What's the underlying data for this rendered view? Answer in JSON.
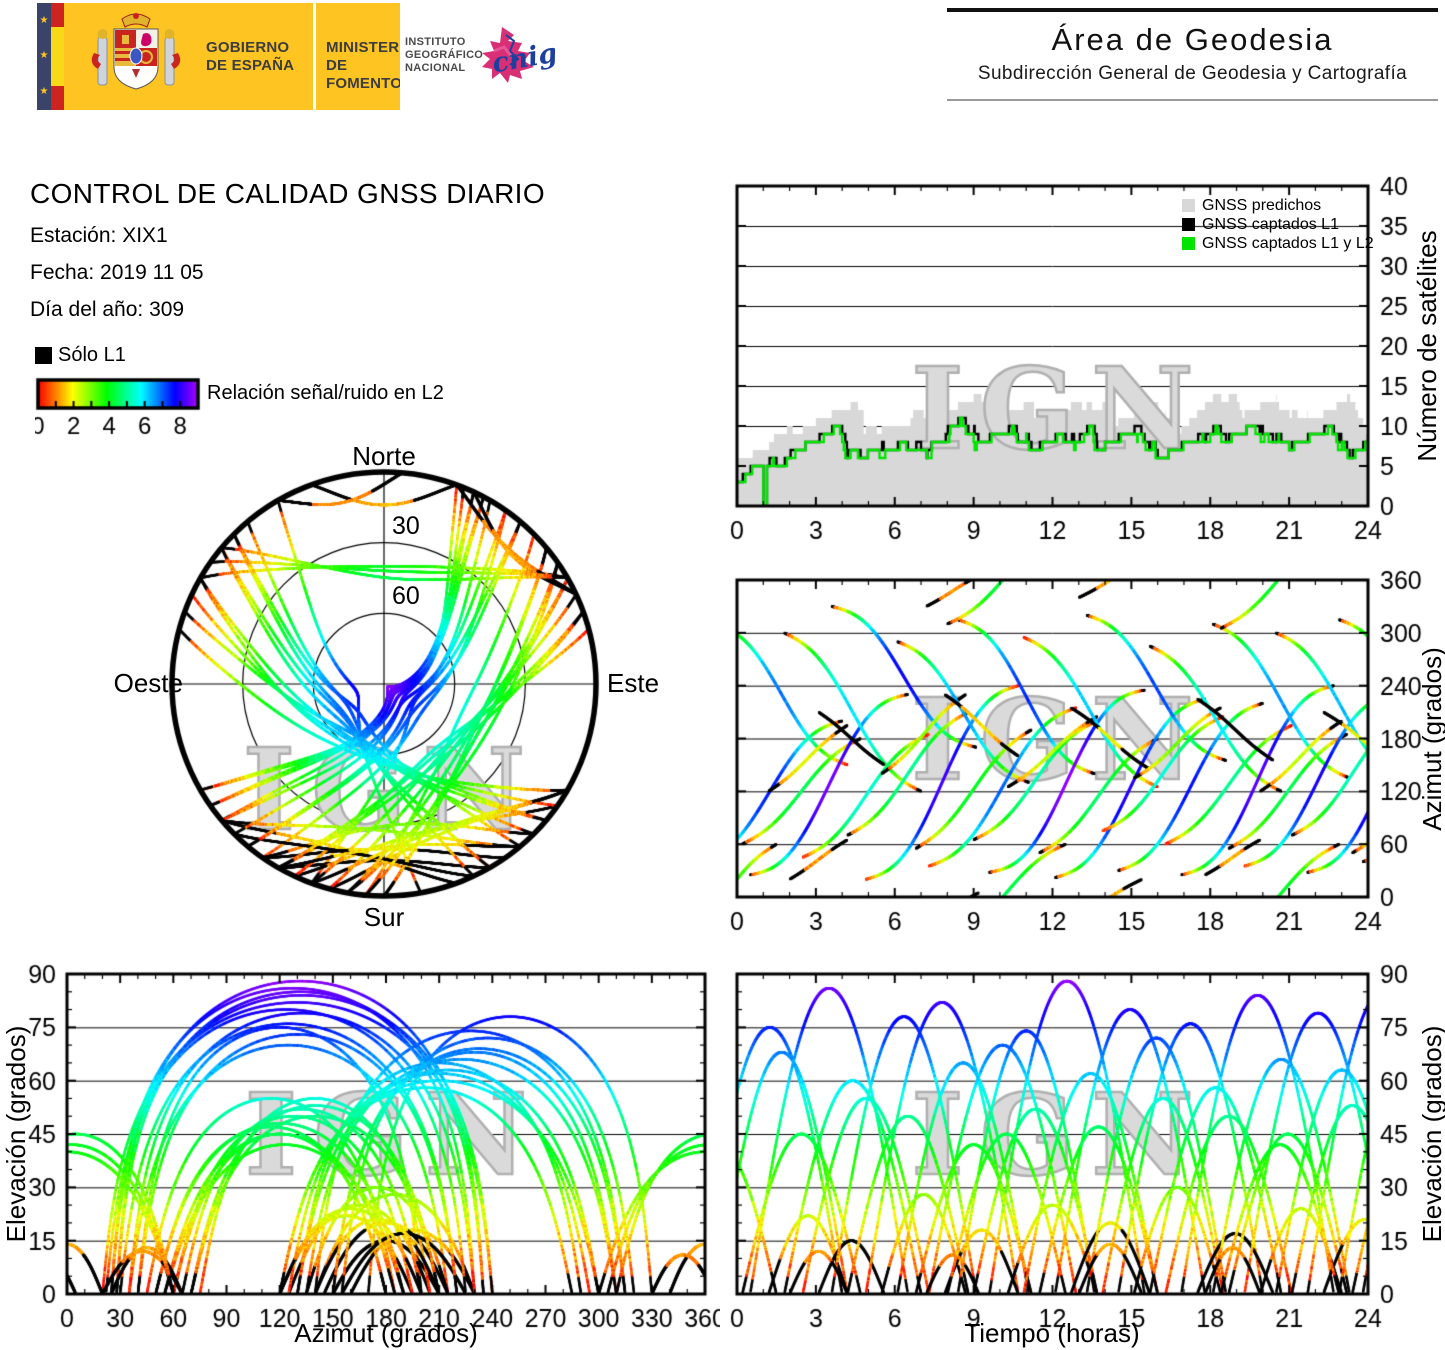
{
  "header": {
    "gobierno_line1": "GOBIERNO",
    "gobierno_line2": "DE ESPAÑA",
    "ministerio_line1": "MINISTERIO",
    "ministerio_line2": "DE FOMENTO",
    "instituto": [
      "INSTITUTO",
      "GEOGRÁFICO",
      "NACIONAL"
    ],
    "cnig": "cnig",
    "area_title": "Área de Geodesia",
    "area_subtitle": "Subdirección General de Geodesia y Cartografía"
  },
  "info": {
    "title": "CONTROL DE CALIDAD GNSS DIARIO",
    "estacion": "Estación: XIX1",
    "fecha": "Fecha: 2019 11 05",
    "dia": "Día del año: 309"
  },
  "legend": {
    "solo_l1": "Sólo L1",
    "colorbar_label": "Relación señal/ruido en L2"
  },
  "skyplot": {
    "north": "Norte",
    "south": "Sur",
    "east": "Este",
    "west": "Oeste",
    "ring_labels": [
      "30",
      "60"
    ],
    "rings_elevation": [
      30,
      60
    ]
  },
  "watermark": "IGN",
  "colors": {
    "eu_navy": "#3a4368",
    "flag_red": "#ce2420",
    "flag_yellow": "#f7d917",
    "banner_yellow": "#fdc422",
    "header_rule_dark": "#111111",
    "header_rule_light": "#9a9a9a",
    "predicted_gray": "#d8d8d8",
    "captured_black": "#000000",
    "captured_green": "#00e400",
    "watermark_fill": "#dadada",
    "watermark_edge": "#b0b0b0"
  },
  "chart_data": {
    "type": "gnss-daily-quality-multichart",
    "snr_scale": {
      "min": 0,
      "max": 9,
      "ticks": [
        0,
        2,
        4,
        6,
        8
      ],
      "hue_start": 0,
      "hue_end": 280
    },
    "passes_format": "t0_hours, duration_hours, azimuth_start_deg, delta_azimuth_deg, elevation_max_deg, l1_only_below_elevation_deg",
    "passes": [
      [
        -1.5,
        5.5,
        40,
        160,
        75,
        5
      ],
      [
        -0.8,
        5.0,
        310,
        -160,
        68,
        0
      ],
      [
        0.2,
        4.5,
        60,
        120,
        45,
        5
      ],
      [
        0.5,
        6.0,
        25,
        205,
        86,
        4
      ],
      [
        1.2,
        3.0,
        120,
        75,
        22,
        10
      ],
      [
        1.8,
        5.2,
        300,
        -180,
        60,
        5
      ],
      [
        2.5,
        4.8,
        45,
        140,
        55,
        0
      ],
      [
        3.1,
        2.5,
        210,
        -60,
        15,
        16
      ],
      [
        3.6,
        5.5,
        330,
        -160,
        78,
        5
      ],
      [
        4.2,
        4.6,
        70,
        140,
        50,
        6
      ],
      [
        4.9,
        5.8,
        20,
        220,
        82,
        0
      ],
      [
        5.5,
        3.2,
        140,
        90,
        28,
        8
      ],
      [
        6.1,
        5.0,
        290,
        -160,
        65,
        5
      ],
      [
        6.8,
        4.4,
        55,
        135,
        42,
        6
      ],
      [
        7.3,
        5.6,
        35,
        180,
        70,
        0
      ],
      [
        7.9,
        2.8,
        230,
        -70,
        18,
        12
      ],
      [
        8.4,
        5.2,
        315,
        -175,
        74,
        5
      ],
      [
        9.0,
        4.7,
        65,
        135,
        52,
        6
      ],
      [
        9.6,
        5.9,
        28,
        207,
        88,
        4
      ],
      [
        10.3,
        3.4,
        125,
        80,
        25,
        9
      ],
      [
        10.9,
        5.1,
        295,
        -170,
        62,
        0
      ],
      [
        11.5,
        4.5,
        50,
        130,
        47,
        6
      ],
      [
        12.1,
        5.7,
        22,
        203,
        80,
        5
      ],
      [
        12.7,
        3.0,
        215,
        -70,
        20,
        18
      ],
      [
        13.3,
        5.3,
        320,
        -165,
        72,
        5
      ],
      [
        13.9,
        4.6,
        75,
        130,
        55,
        0
      ],
      [
        14.5,
        5.5,
        30,
        190,
        76,
        5
      ],
      [
        15.1,
        3.3,
        135,
        80,
        30,
        8
      ],
      [
        15.7,
        5.0,
        285,
        -165,
        58,
        6
      ],
      [
        16.3,
        4.8,
        60,
        135,
        50,
        0
      ],
      [
        16.9,
        5.8,
        25,
        215,
        84,
        5
      ],
      [
        17.5,
        2.9,
        225,
        -70,
        17,
        20
      ],
      [
        18.1,
        5.2,
        310,
        -175,
        66,
        5
      ],
      [
        18.7,
        4.5,
        55,
        130,
        45,
        7
      ],
      [
        19.3,
        5.6,
        35,
        195,
        79,
        0
      ],
      [
        19.9,
        3.1,
        120,
        80,
        24,
        10
      ],
      [
        20.5,
        5.0,
        300,
        -170,
        63,
        5
      ],
      [
        21.1,
        4.6,
        70,
        140,
        53,
        6
      ],
      [
        21.7,
        5.7,
        28,
        207,
        85,
        4
      ],
      [
        22.3,
        3.2,
        210,
        -70,
        21,
        14
      ],
      [
        22.9,
        5.1,
        315,
        -165,
        69,
        5
      ],
      [
        23.4,
        4.4,
        50,
        140,
        48,
        6
      ],
      [
        23.8,
        5.5,
        40,
        180,
        73,
        5
      ],
      [
        -2.5,
        4.0,
        300,
        120,
        40,
        6
      ],
      [
        2.0,
        2.2,
        20,
        45,
        12,
        9
      ],
      [
        13.0,
        2.4,
        340,
        40,
        14,
        11
      ],
      [
        7.2,
        2.0,
        330,
        35,
        11,
        8
      ],
      [
        17.8,
        2.1,
        25,
        40,
        13,
        10
      ],
      [
        8.0,
        4.5,
        310,
        110,
        45,
        5
      ],
      [
        18.4,
        4.5,
        305,
        115,
        42,
        5
      ]
    ],
    "sat_chart": {
      "type": "line",
      "legend": [
        {
          "label": "GNSS predichos",
          "color": "#d8d8d8"
        },
        {
          "label": "GNSS captados L1",
          "color": "#000000"
        },
        {
          "label": "GNSS captados L1 y L2",
          "color": "#00e400"
        }
      ],
      "ylabel": "Número de satélites",
      "xlim": [
        0,
        24
      ],
      "ylim": [
        0,
        40
      ],
      "xticks": [
        0,
        3,
        6,
        9,
        12,
        15,
        18,
        21,
        24
      ],
      "yticks": [
        0,
        5,
        10,
        15,
        20,
        25,
        30,
        35,
        40
      ],
      "x_minor_step": 1,
      "baseline_extra": 1,
      "predict_margin": 0.6,
      "capture_cutoff": 3.5,
      "outage": {
        "start": 1.0,
        "end": 1.12
      }
    },
    "az_chart": {
      "type": "scatter-tracks",
      "ylabel": "Azimut (grados)",
      "xlim": [
        0,
        24
      ],
      "ylim": [
        0,
        360
      ],
      "xticks": [
        0,
        3,
        6,
        9,
        12,
        15,
        18,
        21,
        24
      ],
      "yticks": [
        0,
        60,
        120,
        180,
        240,
        300,
        360
      ],
      "x_minor_step": 1
    },
    "elaz_chart": {
      "type": "scatter-tracks",
      "xlabel": "Azimut (grados)",
      "ylabel": "Elevación (grados)",
      "xlim": [
        0,
        360
      ],
      "ylim": [
        0,
        90
      ],
      "xticks": [
        0,
        30,
        60,
        90,
        120,
        150,
        180,
        210,
        240,
        270,
        300,
        330,
        360
      ],
      "yticks": [
        0,
        15,
        30,
        45,
        60,
        75,
        90
      ],
      "x_minor_step": 10,
      "y_minor_step": 5
    },
    "elt_chart": {
      "type": "scatter-tracks",
      "xlabel": "Tiempo (horas)",
      "ylabel": "Elevación (grados)",
      "xlim": [
        0,
        24
      ],
      "ylim": [
        0,
        90
      ],
      "xticks": [
        0,
        3,
        6,
        9,
        12,
        15,
        18,
        21,
        24
      ],
      "yticks": [
        0,
        15,
        30,
        45,
        60,
        75,
        90
      ],
      "x_minor_step": 1,
      "y_minor_step": 5
    },
    "colorbar": {
      "ticks": [
        0,
        2,
        4,
        6,
        8
      ],
      "minor_every": 1,
      "range": [
        0,
        9
      ]
    }
  }
}
